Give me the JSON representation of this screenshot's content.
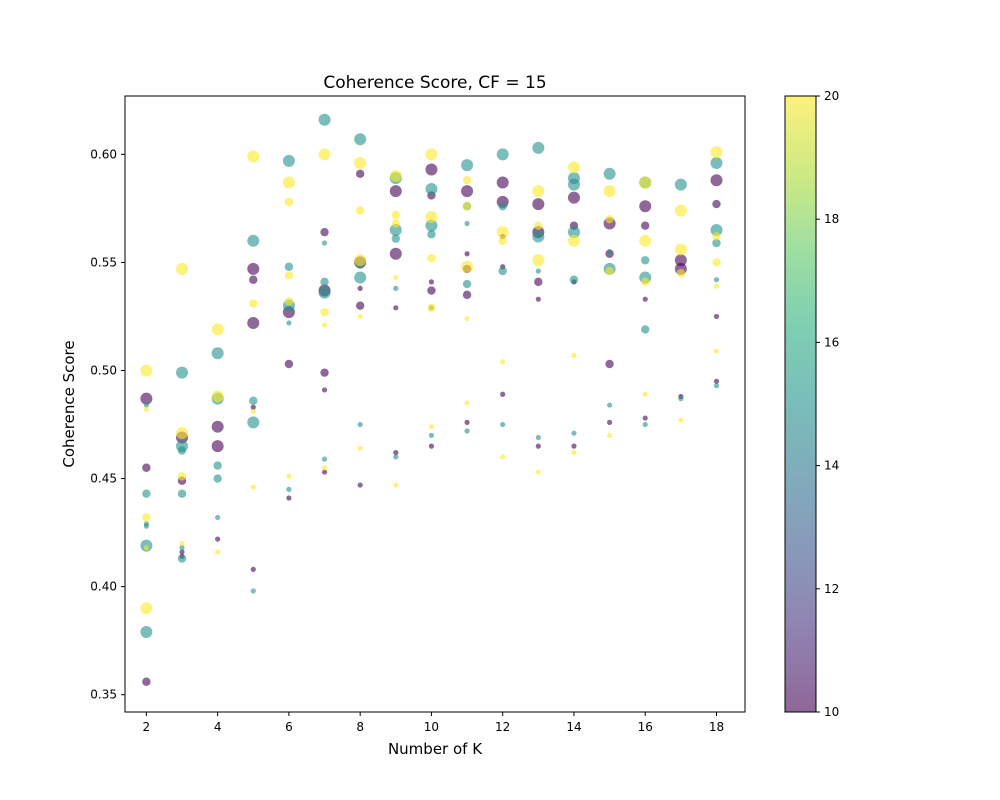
{
  "chart_data": {
    "type": "scatter",
    "title": "Coherence Score, CF = 15",
    "xlabel": "Number of K",
    "ylabel": "Coherence Score",
    "xlim": [
      1.4,
      18.8
    ],
    "ylim": [
      0.342,
      0.627
    ],
    "x_ticks": [
      2,
      4,
      6,
      8,
      10,
      12,
      14,
      16,
      18
    ],
    "y_ticks": [
      0.35,
      0.4,
      0.45,
      0.5,
      0.55,
      0.6
    ],
    "grid": false,
    "colorbar": {
      "min": 10,
      "max": 20,
      "ticks": [
        10,
        12,
        14,
        16,
        18,
        20
      ],
      "colormap": "viridis",
      "opacity": 0.6
    },
    "point_encoding": {
      "color": "colorbar value",
      "size": "relative marker size (1 = smallest, 4 = largest)"
    },
    "points": [
      [
        2,
        0.487,
        10,
        3
      ],
      [
        2,
        0.455,
        10,
        2
      ],
      [
        2,
        0.356,
        10,
        2
      ],
      [
        2,
        0.484,
        15,
        1
      ],
      [
        2,
        0.443,
        15,
        2
      ],
      [
        2,
        0.429,
        15,
        1
      ],
      [
        2,
        0.428,
        15,
        1
      ],
      [
        2,
        0.419,
        15,
        3
      ],
      [
        2,
        0.379,
        15,
        3
      ],
      [
        2,
        0.5,
        20,
        3
      ],
      [
        2,
        0.482,
        20,
        1
      ],
      [
        2,
        0.432,
        20,
        2
      ],
      [
        2,
        0.418,
        20,
        1
      ],
      [
        2,
        0.39,
        20,
        3
      ],
      [
        3,
        0.469,
        10,
        3
      ],
      [
        3,
        0.449,
        10,
        2
      ],
      [
        3,
        0.416,
        10,
        1
      ],
      [
        3,
        0.414,
        10,
        1
      ],
      [
        3,
        0.499,
        15,
        3
      ],
      [
        3,
        0.465,
        15,
        3
      ],
      [
        3,
        0.463,
        15,
        2
      ],
      [
        3,
        0.443,
        15,
        2
      ],
      [
        3,
        0.418,
        15,
        1
      ],
      [
        3,
        0.413,
        15,
        2
      ],
      [
        3,
        0.547,
        20,
        3
      ],
      [
        3,
        0.471,
        20,
        3
      ],
      [
        3,
        0.451,
        20,
        2
      ],
      [
        3,
        0.42,
        20,
        1
      ],
      [
        4,
        0.474,
        10,
        3
      ],
      [
        4,
        0.465,
        10,
        3
      ],
      [
        4,
        0.422,
        10,
        1
      ],
      [
        4,
        0.508,
        15,
        3
      ],
      [
        4,
        0.487,
        15,
        3
      ],
      [
        4,
        0.456,
        15,
        2
      ],
      [
        4,
        0.45,
        15,
        2
      ],
      [
        4,
        0.432,
        15,
        1
      ],
      [
        4,
        0.519,
        20,
        3
      ],
      [
        4,
        0.488,
        20,
        3
      ],
      [
        4,
        0.416,
        20,
        1
      ],
      [
        5,
        0.547,
        10,
        3
      ],
      [
        5,
        0.542,
        10,
        2
      ],
      [
        5,
        0.522,
        10,
        3
      ],
      [
        5,
        0.483,
        10,
        1
      ],
      [
        5,
        0.408,
        10,
        1
      ],
      [
        5,
        0.56,
        15,
        3
      ],
      [
        5,
        0.486,
        15,
        2
      ],
      [
        5,
        0.476,
        15,
        3
      ],
      [
        5,
        0.398,
        15,
        1
      ],
      [
        5,
        0.599,
        20,
        3
      ],
      [
        5,
        0.531,
        20,
        2
      ],
      [
        5,
        0.481,
        20,
        1
      ],
      [
        5,
        0.446,
        20,
        1
      ],
      [
        6,
        0.527,
        10,
        3
      ],
      [
        6,
        0.503,
        10,
        2
      ],
      [
        6,
        0.441,
        10,
        1
      ],
      [
        6,
        0.597,
        15,
        3
      ],
      [
        6,
        0.548,
        15,
        2
      ],
      [
        6,
        0.53,
        15,
        3
      ],
      [
        6,
        0.522,
        15,
        1
      ],
      [
        6,
        0.445,
        15,
        1
      ],
      [
        6,
        0.587,
        20,
        3
      ],
      [
        6,
        0.578,
        20,
        2
      ],
      [
        6,
        0.544,
        20,
        2
      ],
      [
        6,
        0.532,
        20,
        2
      ],
      [
        6,
        0.451,
        20,
        1
      ],
      [
        7,
        0.564,
        10,
        2
      ],
      [
        7,
        0.537,
        10,
        3
      ],
      [
        7,
        0.499,
        10,
        2
      ],
      [
        7,
        0.491,
        10,
        1
      ],
      [
        7,
        0.453,
        10,
        1
      ],
      [
        7,
        0.616,
        15,
        3
      ],
      [
        7,
        0.559,
        15,
        1
      ],
      [
        7,
        0.541,
        15,
        2
      ],
      [
        7,
        0.536,
        15,
        3
      ],
      [
        7,
        0.459,
        15,
        1
      ],
      [
        7,
        0.6,
        20,
        3
      ],
      [
        7,
        0.527,
        20,
        2
      ],
      [
        7,
        0.521,
        20,
        1
      ],
      [
        7,
        0.455,
        20,
        1
      ],
      [
        8,
        0.591,
        10,
        2
      ],
      [
        8,
        0.55,
        10,
        3
      ],
      [
        8,
        0.538,
        10,
        1
      ],
      [
        8,
        0.53,
        10,
        2
      ],
      [
        8,
        0.447,
        10,
        1
      ],
      [
        8,
        0.607,
        15,
        3
      ],
      [
        8,
        0.549,
        15,
        2
      ],
      [
        8,
        0.543,
        15,
        3
      ],
      [
        8,
        0.475,
        15,
        1
      ],
      [
        8,
        0.596,
        20,
        3
      ],
      [
        8,
        0.574,
        20,
        2
      ],
      [
        8,
        0.551,
        20,
        3
      ],
      [
        8,
        0.525,
        20,
        1
      ],
      [
        8,
        0.464,
        20,
        1
      ],
      [
        9,
        0.583,
        10,
        3
      ],
      [
        9,
        0.554,
        10,
        3
      ],
      [
        9,
        0.529,
        10,
        1
      ],
      [
        9,
        0.462,
        10,
        1
      ],
      [
        9,
        0.589,
        15,
        3
      ],
      [
        9,
        0.565,
        15,
        3
      ],
      [
        9,
        0.561,
        15,
        2
      ],
      [
        9,
        0.538,
        15,
        1
      ],
      [
        9,
        0.46,
        15,
        1
      ],
      [
        9,
        0.59,
        20,
        3
      ],
      [
        9,
        0.572,
        20,
        2
      ],
      [
        9,
        0.568,
        20,
        2
      ],
      [
        9,
        0.543,
        20,
        1
      ],
      [
        9,
        0.447,
        20,
        1
      ],
      [
        10,
        0.593,
        10,
        3
      ],
      [
        10,
        0.581,
        10,
        2
      ],
      [
        10,
        0.541,
        10,
        1
      ],
      [
        10,
        0.537,
        10,
        2
      ],
      [
        10,
        0.465,
        10,
        1
      ],
      [
        10,
        0.584,
        15,
        3
      ],
      [
        10,
        0.567,
        15,
        3
      ],
      [
        10,
        0.563,
        15,
        2
      ],
      [
        10,
        0.529,
        15,
        1
      ],
      [
        10,
        0.47,
        15,
        1
      ],
      [
        10,
        0.6,
        20,
        3
      ],
      [
        10,
        0.571,
        20,
        3
      ],
      [
        10,
        0.552,
        20,
        2
      ],
      [
        10,
        0.529,
        20,
        2
      ],
      [
        10,
        0.474,
        20,
        1
      ],
      [
        11,
        0.583,
        10,
        3
      ],
      [
        11,
        0.554,
        10,
        1
      ],
      [
        11,
        0.547,
        10,
        2
      ],
      [
        11,
        0.535,
        10,
        2
      ],
      [
        11,
        0.476,
        10,
        1
      ],
      [
        11,
        0.595,
        15,
        3
      ],
      [
        11,
        0.576,
        15,
        2
      ],
      [
        11,
        0.568,
        15,
        1
      ],
      [
        11,
        0.54,
        15,
        2
      ],
      [
        11,
        0.472,
        15,
        1
      ],
      [
        11,
        0.588,
        20,
        2
      ],
      [
        11,
        0.576,
        20,
        2
      ],
      [
        11,
        0.548,
        20,
        3
      ],
      [
        11,
        0.524,
        20,
        1
      ],
      [
        11,
        0.485,
        20,
        1
      ],
      [
        12,
        0.587,
        10,
        3
      ],
      [
        12,
        0.578,
        10,
        3
      ],
      [
        12,
        0.562,
        10,
        1
      ],
      [
        12,
        0.548,
        10,
        1
      ],
      [
        12,
        0.489,
        10,
        1
      ],
      [
        12,
        0.6,
        15,
        3
      ],
      [
        12,
        0.576,
        15,
        2
      ],
      [
        12,
        0.546,
        15,
        2
      ],
      [
        12,
        0.475,
        15,
        1
      ],
      [
        12,
        0.564,
        20,
        3
      ],
      [
        12,
        0.56,
        20,
        2
      ],
      [
        12,
        0.504,
        20,
        1
      ],
      [
        12,
        0.46,
        20,
        1
      ],
      [
        13,
        0.577,
        10,
        3
      ],
      [
        13,
        0.564,
        10,
        3
      ],
      [
        13,
        0.541,
        10,
        2
      ],
      [
        13,
        0.533,
        10,
        1
      ],
      [
        13,
        0.465,
        10,
        1
      ],
      [
        13,
        0.603,
        15,
        3
      ],
      [
        13,
        0.562,
        15,
        3
      ],
      [
        13,
        0.546,
        15,
        1
      ],
      [
        13,
        0.469,
        15,
        1
      ],
      [
        13,
        0.583,
        20,
        3
      ],
      [
        13,
        0.567,
        20,
        2
      ],
      [
        13,
        0.551,
        20,
        3
      ],
      [
        13,
        0.453,
        20,
        1
      ],
      [
        14,
        0.58,
        10,
        3
      ],
      [
        14,
        0.567,
        10,
        2
      ],
      [
        14,
        0.541,
        10,
        1
      ],
      [
        14,
        0.465,
        10,
        1
      ],
      [
        14,
        0.589,
        15,
        3
      ],
      [
        14,
        0.586,
        15,
        3
      ],
      [
        14,
        0.564,
        15,
        3
      ],
      [
        14,
        0.542,
        15,
        2
      ],
      [
        14,
        0.471,
        15,
        1
      ],
      [
        14,
        0.594,
        20,
        3
      ],
      [
        14,
        0.56,
        20,
        3
      ],
      [
        14,
        0.507,
        20,
        1
      ],
      [
        14,
        0.462,
        20,
        1
      ],
      [
        15,
        0.568,
        10,
        3
      ],
      [
        15,
        0.554,
        10,
        2
      ],
      [
        15,
        0.503,
        10,
        2
      ],
      [
        15,
        0.476,
        10,
        1
      ],
      [
        15,
        0.591,
        15,
        3
      ],
      [
        15,
        0.555,
        15,
        1
      ],
      [
        15,
        0.547,
        15,
        3
      ],
      [
        15,
        0.484,
        15,
        1
      ],
      [
        15,
        0.583,
        20,
        3
      ],
      [
        15,
        0.57,
        20,
        2
      ],
      [
        15,
        0.546,
        20,
        2
      ],
      [
        15,
        0.47,
        20,
        1
      ],
      [
        16,
        0.576,
        10,
        3
      ],
      [
        16,
        0.567,
        10,
        2
      ],
      [
        16,
        0.533,
        10,
        1
      ],
      [
        16,
        0.478,
        10,
        1
      ],
      [
        16,
        0.587,
        15,
        3
      ],
      [
        16,
        0.551,
        15,
        2
      ],
      [
        16,
        0.543,
        15,
        3
      ],
      [
        16,
        0.519,
        15,
        2
      ],
      [
        16,
        0.475,
        15,
        1
      ],
      [
        16,
        0.587,
        20,
        3
      ],
      [
        16,
        0.56,
        20,
        3
      ],
      [
        16,
        0.541,
        20,
        2
      ],
      [
        16,
        0.489,
        20,
        1
      ],
      [
        17,
        0.551,
        10,
        3
      ],
      [
        17,
        0.547,
        10,
        3
      ],
      [
        17,
        0.488,
        10,
        1
      ],
      [
        17,
        0.586,
        15,
        3
      ],
      [
        17,
        0.487,
        15,
        1
      ],
      [
        17,
        0.574,
        20,
        3
      ],
      [
        17,
        0.556,
        20,
        3
      ],
      [
        17,
        0.545,
        20,
        2
      ],
      [
        17,
        0.477,
        20,
        1
      ],
      [
        18,
        0.588,
        10,
        3
      ],
      [
        18,
        0.577,
        10,
        2
      ],
      [
        18,
        0.525,
        10,
        1
      ],
      [
        18,
        0.495,
        10,
        1
      ],
      [
        18,
        0.596,
        15,
        3
      ],
      [
        18,
        0.565,
        15,
        3
      ],
      [
        18,
        0.559,
        15,
        2
      ],
      [
        18,
        0.542,
        15,
        1
      ],
      [
        18,
        0.493,
        15,
        1
      ],
      [
        18,
        0.601,
        20,
        3
      ],
      [
        18,
        0.562,
        20,
        2
      ],
      [
        18,
        0.55,
        20,
        2
      ],
      [
        18,
        0.539,
        20,
        1
      ],
      [
        18,
        0.509,
        20,
        1
      ]
    ]
  }
}
